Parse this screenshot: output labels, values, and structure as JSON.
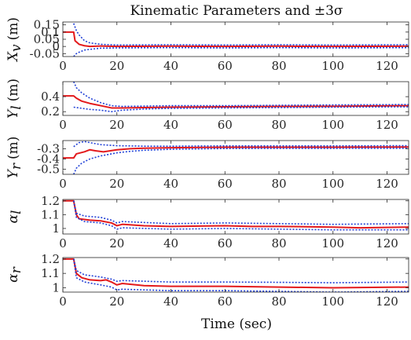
{
  "chart_data": {
    "type": "line",
    "title": "Kinematic Parameters and ±3σ",
    "xlabel": "Time (sec)",
    "xlim": [
      0,
      128
    ],
    "xticks": [
      0,
      20,
      40,
      60,
      80,
      100,
      120
    ],
    "xtick_labels": [
      "0",
      "20",
      "40",
      "60",
      "80",
      "100",
      "120"
    ],
    "grid": false,
    "legend": "none",
    "colors": {
      "estimate": "#e31a1c",
      "bounds": "#1f3fd6"
    },
    "panels": [
      {
        "id": "xv",
        "ylabel_main": "X",
        "ylabel_sub": "v",
        "ylabel_unit": "(m)",
        "ylim": [
          -0.07,
          0.17
        ],
        "yticks": [
          0.15,
          0.1,
          0.05,
          0,
          -0.05
        ],
        "ytick_labels": [
          "0.15",
          "0.1",
          "0.05",
          "0",
          "-0.05"
        ],
        "series": [
          {
            "role": "estimate",
            "points": [
              [
                0,
                0.1
              ],
              [
                4,
                0.1
              ],
              [
                4.5,
                0.04
              ],
              [
                6,
                0.015
              ],
              [
                8,
                0.005
              ],
              [
                10,
                0.0
              ],
              [
                14,
                0.003
              ],
              [
                20,
                0.0
              ],
              [
                40,
                0.002
              ],
              [
                60,
                0.0
              ],
              [
                80,
                0.002
              ],
              [
                100,
                0.0
              ],
              [
                128,
                0.002
              ]
            ]
          },
          {
            "role": "upper",
            "points": [
              [
                4,
                0.16
              ],
              [
                5,
                0.11
              ],
              [
                6,
                0.08
              ],
              [
                8,
                0.04
              ],
              [
                10,
                0.025
              ],
              [
                14,
                0.015
              ],
              [
                20,
                0.01
              ],
              [
                40,
                0.012
              ],
              [
                60,
                0.01
              ],
              [
                80,
                0.012
              ],
              [
                100,
                0.01
              ],
              [
                128,
                0.012
              ]
            ]
          },
          {
            "role": "lower",
            "points": [
              [
                4,
                -0.07
              ],
              [
                5,
                -0.05
              ],
              [
                6,
                -0.04
              ],
              [
                8,
                -0.025
              ],
              [
                10,
                -0.02
              ],
              [
                14,
                -0.012
              ],
              [
                20,
                -0.01
              ],
              [
                40,
                -0.008
              ],
              [
                60,
                -0.01
              ],
              [
                80,
                -0.008
              ],
              [
                100,
                -0.01
              ],
              [
                128,
                -0.008
              ]
            ]
          }
        ]
      },
      {
        "id": "yl",
        "ylabel_main": "Y",
        "ylabel_sub": "l",
        "ylabel_unit": "(m)",
        "ylim": [
          0.15,
          0.6
        ],
        "yticks": [
          0.4,
          0.2
        ],
        "ytick_labels": [
          "0.4",
          "0.2"
        ],
        "series": [
          {
            "role": "estimate",
            "points": [
              [
                0,
                0.41
              ],
              [
                4,
                0.41
              ],
              [
                5,
                0.38
              ],
              [
                7,
                0.34
              ],
              [
                10,
                0.31
              ],
              [
                14,
                0.28
              ],
              [
                18,
                0.25
              ],
              [
                22,
                0.25
              ],
              [
                30,
                0.255
              ],
              [
                40,
                0.26
              ],
              [
                60,
                0.265
              ],
              [
                80,
                0.27
              ],
              [
                100,
                0.272
              ],
              [
                128,
                0.28
              ]
            ]
          },
          {
            "role": "upper",
            "points": [
              [
                4,
                0.6
              ],
              [
                5,
                0.52
              ],
              [
                7,
                0.45
              ],
              [
                10,
                0.38
              ],
              [
                14,
                0.32
              ],
              [
                18,
                0.28
              ],
              [
                22,
                0.27
              ],
              [
                40,
                0.28
              ],
              [
                60,
                0.28
              ],
              [
                80,
                0.285
              ],
              [
                100,
                0.29
              ],
              [
                128,
                0.295
              ]
            ]
          },
          {
            "role": "lower",
            "points": [
              [
                4,
                0.26
              ],
              [
                6,
                0.25
              ],
              [
                10,
                0.23
              ],
              [
                14,
                0.22
              ],
              [
                18,
                0.2
              ],
              [
                22,
                0.22
              ],
              [
                30,
                0.235
              ],
              [
                40,
                0.245
              ],
              [
                60,
                0.25
              ],
              [
                80,
                0.255
              ],
              [
                100,
                0.26
              ],
              [
                128,
                0.265
              ]
            ]
          }
        ]
      },
      {
        "id": "yr",
        "ylabel_main": "Y",
        "ylabel_sub": "r",
        "ylabel_unit": "(m)",
        "ylim": [
          -0.55,
          -0.22
        ],
        "yticks": [
          -0.3,
          -0.4,
          -0.5
        ],
        "ytick_labels": [
          "-0.3",
          "-0.4",
          "-0.5"
        ],
        "series": [
          {
            "role": "estimate",
            "points": [
              [
                0,
                -0.39
              ],
              [
                4,
                -0.39
              ],
              [
                5,
                -0.35
              ],
              [
                8,
                -0.33
              ],
              [
                10,
                -0.31
              ],
              [
                12,
                -0.32
              ],
              [
                15,
                -0.33
              ],
              [
                20,
                -0.31
              ],
              [
                25,
                -0.3
              ],
              [
                30,
                -0.295
              ],
              [
                40,
                -0.29
              ],
              [
                60,
                -0.285
              ],
              [
                80,
                -0.285
              ],
              [
                100,
                -0.285
              ],
              [
                128,
                -0.283
              ]
            ]
          },
          {
            "role": "upper",
            "points": [
              [
                4,
                -0.28
              ],
              [
                6,
                -0.24
              ],
              [
                8,
                -0.23
              ],
              [
                10,
                -0.24
              ],
              [
                14,
                -0.26
              ],
              [
                20,
                -0.27
              ],
              [
                30,
                -0.275
              ],
              [
                40,
                -0.275
              ],
              [
                60,
                -0.272
              ],
              [
                80,
                -0.272
              ],
              [
                100,
                -0.272
              ],
              [
                128,
                -0.27
              ]
            ]
          },
          {
            "role": "lower",
            "points": [
              [
                4,
                -0.55
              ],
              [
                5,
                -0.49
              ],
              [
                7,
                -0.44
              ],
              [
                10,
                -0.4
              ],
              [
                14,
                -0.37
              ],
              [
                20,
                -0.34
              ],
              [
                25,
                -0.325
              ],
              [
                30,
                -0.315
              ],
              [
                40,
                -0.305
              ],
              [
                60,
                -0.298
              ],
              [
                80,
                -0.296
              ],
              [
                100,
                -0.296
              ],
              [
                128,
                -0.295
              ]
            ]
          }
        ]
      },
      {
        "id": "al",
        "ylabel_main": "α",
        "ylabel_sub": "l",
        "ylabel_unit": "",
        "ylim": [
          0.96,
          1.21
        ],
        "yticks": [
          1.2,
          1.1,
          1.0
        ],
        "ytick_labels": [
          "1.2",
          "1.1",
          "1"
        ],
        "series": [
          {
            "role": "estimate",
            "points": [
              [
                0,
                1.2
              ],
              [
                4,
                1.2
              ],
              [
                5,
                1.1
              ],
              [
                6,
                1.07
              ],
              [
                10,
                1.06
              ],
              [
                14,
                1.055
              ],
              [
                18,
                1.04
              ],
              [
                20,
                1.02
              ],
              [
                22,
                1.03
              ],
              [
                30,
                1.02
              ],
              [
                40,
                1.015
              ],
              [
                60,
                1.02
              ],
              [
                70,
                1.015
              ],
              [
                80,
                1.015
              ],
              [
                100,
                1.01
              ],
              [
                110,
                1.005
              ],
              [
                128,
                1.01
              ]
            ]
          },
          {
            "role": "upper",
            "points": [
              [
                4,
                1.2
              ],
              [
                5,
                1.11
              ],
              [
                8,
                1.09
              ],
              [
                14,
                1.08
              ],
              [
                18,
                1.06
              ],
              [
                20,
                1.04
              ],
              [
                22,
                1.05
              ],
              [
                40,
                1.035
              ],
              [
                60,
                1.04
              ],
              [
                80,
                1.035
              ],
              [
                100,
                1.03
              ],
              [
                128,
                1.035
              ]
            ]
          },
          {
            "role": "lower",
            "points": [
              [
                4,
                1.2
              ],
              [
                5,
                1.08
              ],
              [
                8,
                1.05
              ],
              [
                14,
                1.04
              ],
              [
                18,
                1.02
              ],
              [
                20,
                0.995
              ],
              [
                22,
                1.005
              ],
              [
                40,
                0.995
              ],
              [
                60,
                1.0
              ],
              [
                80,
                0.995
              ],
              [
                100,
                0.99
              ],
              [
                128,
                0.99
              ]
            ]
          }
        ]
      },
      {
        "id": "ar",
        "ylabel_main": "α",
        "ylabel_sub": "r",
        "ylabel_unit": "",
        "ylim": [
          0.97,
          1.21
        ],
        "yticks": [
          1.2,
          1.1,
          1.0
        ],
        "ytick_labels": [
          "1.2",
          "1.1",
          "1"
        ],
        "series": [
          {
            "role": "estimate",
            "points": [
              [
                0,
                1.2
              ],
              [
                4,
                1.2
              ],
              [
                5,
                1.1
              ],
              [
                7,
                1.07
              ],
              [
                10,
                1.055
              ],
              [
                14,
                1.05
              ],
              [
                16,
                1.055
              ],
              [
                18,
                1.04
              ],
              [
                20,
                1.02
              ],
              [
                22,
                1.03
              ],
              [
                30,
                1.015
              ],
              [
                40,
                1.01
              ],
              [
                60,
                1.01
              ],
              [
                80,
                1.005
              ],
              [
                100,
                1.0
              ],
              [
                128,
                1.005
              ]
            ]
          },
          {
            "role": "upper",
            "points": [
              [
                4,
                1.2
              ],
              [
                5,
                1.12
              ],
              [
                8,
                1.09
              ],
              [
                14,
                1.075
              ],
              [
                18,
                1.06
              ],
              [
                20,
                1.045
              ],
              [
                22,
                1.05
              ],
              [
                40,
                1.04
              ],
              [
                60,
                1.04
              ],
              [
                80,
                1.038
              ],
              [
                100,
                1.035
              ],
              [
                128,
                1.04
              ]
            ]
          },
          {
            "role": "lower",
            "points": [
              [
                4,
                1.2
              ],
              [
                5,
                1.07
              ],
              [
                8,
                1.04
              ],
              [
                14,
                1.02
              ],
              [
                18,
                1.005
              ],
              [
                20,
                0.985
              ],
              [
                22,
                0.99
              ],
              [
                40,
                0.98
              ],
              [
                60,
                0.98
              ],
              [
                80,
                0.975
              ],
              [
                100,
                0.97
              ],
              [
                128,
                0.975
              ]
            ]
          }
        ]
      }
    ]
  }
}
